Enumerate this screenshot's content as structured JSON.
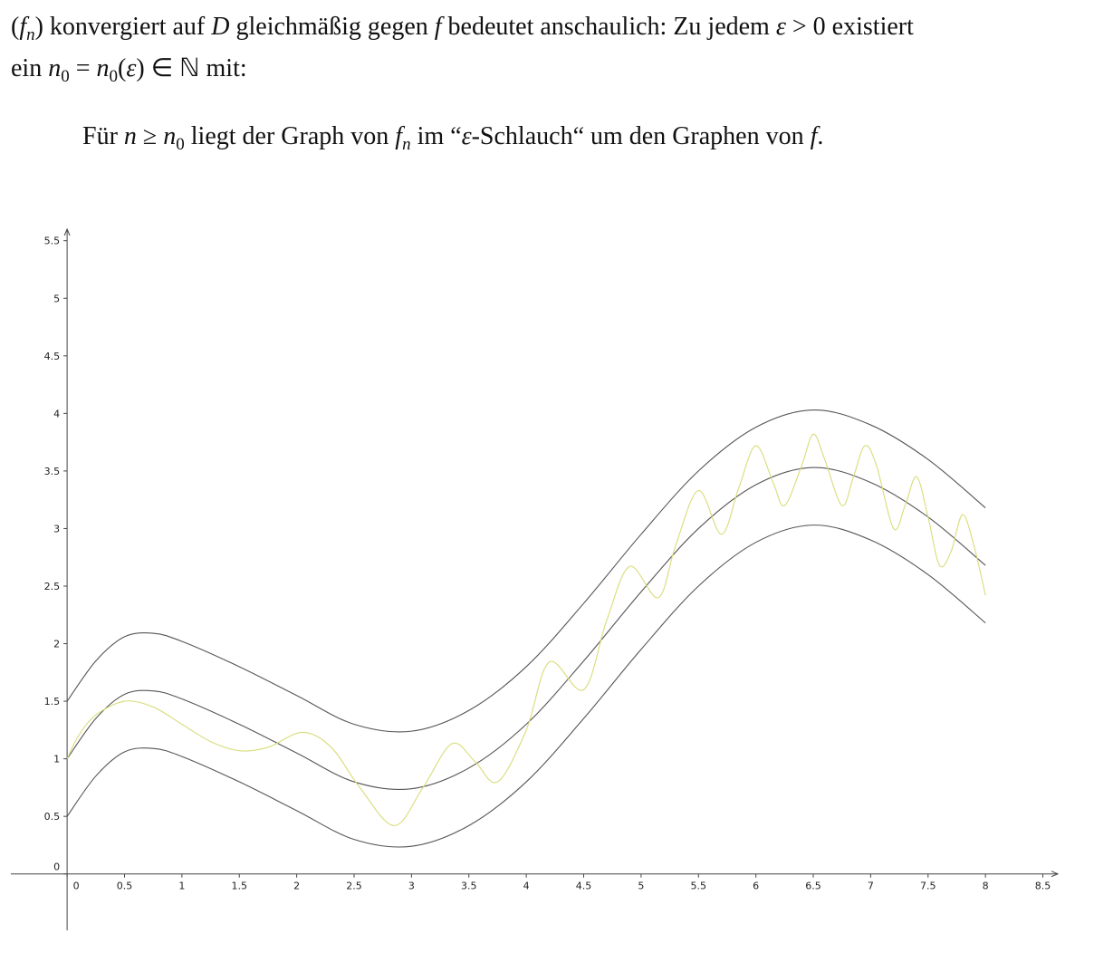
{
  "text": {
    "line1": [
      "(",
      "f",
      "n",
      ") konvergiert auf ",
      "D",
      " gleichmäßig gegen ",
      "f",
      " bedeutet anschaulich: Zu jedem ",
      "ε",
      " > 0 existiert"
    ],
    "line2": [
      "ein ",
      "n",
      "0",
      " = ",
      "n",
      "0",
      "(",
      "ε",
      ") ∈ ℕ mit:"
    ],
    "line3": [
      "Für ",
      "n",
      " ≥ ",
      "n",
      "0",
      " liegt der Graph von ",
      "f",
      "n",
      " im “",
      "ε",
      "-Schlauch“ um den Graphen von ",
      "f",
      "."
    ]
  },
  "chart_data": {
    "type": "line",
    "xlim": [
      -0.49,
      8.63
    ],
    "ylim": [
      -0.49,
      5.6
    ],
    "xticks": [
      0,
      0.5,
      1,
      1.5,
      2,
      2.5,
      3,
      3.5,
      4,
      4.5,
      5,
      5.5,
      6,
      6.5,
      7,
      7.5,
      8,
      8.5
    ],
    "yticks": [
      0,
      0.5,
      1,
      1.5,
      2,
      2.5,
      3,
      3.5,
      4,
      4.5,
      5,
      5.5
    ],
    "x": [
      0,
      0.25,
      0.5,
      0.75,
      1,
      1.5,
      2,
      2.5,
      3,
      3.5,
      4,
      4.5,
      5,
      5.5,
      6,
      6.5,
      7,
      7.5,
      8
    ],
    "series": [
      {
        "color": "#555555",
        "values": [
          1.5,
          1.85,
          2.06,
          2.09,
          2.02,
          1.8,
          1.55,
          1.3,
          1.24,
          1.42,
          1.8,
          2.35,
          2.95,
          3.5,
          3.88,
          4.03,
          3.9,
          3.6,
          3.18
        ]
      },
      {
        "color": "#555555",
        "values": [
          1.0,
          1.35,
          1.56,
          1.59,
          1.52,
          1.3,
          1.05,
          0.8,
          0.74,
          0.92,
          1.3,
          1.85,
          2.45,
          3.0,
          3.38,
          3.53,
          3.4,
          3.1,
          2.68
        ]
      },
      {
        "color": "#555555",
        "values": [
          0.5,
          0.85,
          1.06,
          1.09,
          1.02,
          0.8,
          0.55,
          0.3,
          0.24,
          0.42,
          0.8,
          1.35,
          1.95,
          2.5,
          2.88,
          3.03,
          2.9,
          2.6,
          2.18
        ]
      },
      {
        "color": "#d9dc7a",
        "x": [
          0,
          0.1,
          0.25,
          0.5,
          0.75,
          1,
          1.25,
          1.5,
          1.75,
          2.05,
          2.3,
          2.55,
          2.85,
          3.1,
          3.35,
          3.55,
          3.75,
          4,
          4.2,
          4.5,
          4.7,
          4.9,
          5.15,
          5.3,
          5.5,
          5.7,
          5.85,
          6.0,
          6.15,
          6.25,
          6.4,
          6.5,
          6.6,
          6.75,
          6.85,
          6.95,
          7.05,
          7.2,
          7.3,
          7.4,
          7.5,
          7.6,
          7.7,
          7.8,
          7.9,
          8.0
        ],
        "values": [
          1.0,
          1.2,
          1.38,
          1.5,
          1.45,
          1.3,
          1.15,
          1.07,
          1.1,
          1.23,
          1.1,
          0.75,
          0.42,
          0.75,
          1.13,
          0.98,
          0.8,
          1.25,
          1.84,
          1.6,
          2.2,
          2.67,
          2.4,
          2.85,
          3.33,
          2.95,
          3.35,
          3.72,
          3.4,
          3.2,
          3.55,
          3.82,
          3.6,
          3.2,
          3.45,
          3.72,
          3.55,
          3.0,
          3.2,
          3.45,
          3.1,
          2.68,
          2.8,
          3.12,
          2.85,
          2.42
        ]
      }
    ]
  }
}
